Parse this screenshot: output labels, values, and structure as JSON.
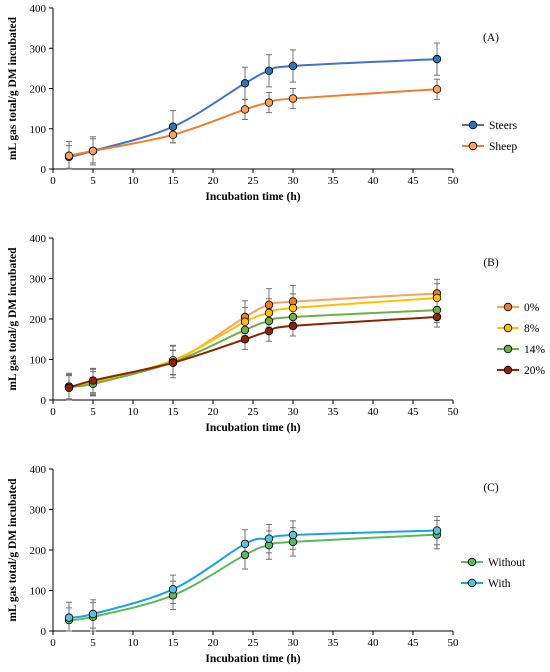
{
  "chart_data": [
    {
      "type": "line",
      "panel_label": "(A)",
      "xlabel": "Incubation time (h)",
      "ylabel": "mL gas total/g DM incubated",
      "xlim": [
        0,
        50
      ],
      "ylim": [
        0,
        400
      ],
      "xticks": [
        0,
        5,
        10,
        15,
        20,
        25,
        30,
        35,
        40,
        45,
        50
      ],
      "yticks": [
        0,
        100,
        200,
        300,
        400
      ],
      "grid": false,
      "legend_position": "right",
      "x": [
        2,
        5,
        15,
        24,
        27,
        30,
        48
      ],
      "series": [
        {
          "name": "Steers",
          "color": "#4472c4",
          "marker": "#2e75b6",
          "values": [
            30,
            45,
            105,
            213,
            244,
            256,
            273
          ],
          "err": [
            28,
            35,
            40,
            40,
            40,
            40,
            40
          ]
        },
        {
          "name": "Sheep",
          "color": "#ed7d31",
          "marker": "#f4a460",
          "values": [
            33,
            45,
            85,
            148,
            165,
            175,
            198
          ],
          "err": [
            35,
            30,
            20,
            25,
            25,
            25,
            25
          ]
        }
      ]
    },
    {
      "type": "line",
      "panel_label": "(B)",
      "xlabel": "Incubation time (h)",
      "ylabel": "mL gas total/g DM incubated",
      "xlim": [
        0,
        50
      ],
      "ylim": [
        0,
        400
      ],
      "xticks": [
        0,
        5,
        10,
        15,
        20,
        25,
        30,
        35,
        40,
        45,
        50
      ],
      "yticks": [
        0,
        100,
        200,
        300,
        400
      ],
      "grid": false,
      "legend_position": "right",
      "x": [
        2,
        5,
        15,
        24,
        27,
        30,
        48
      ],
      "series": [
        {
          "name": "0%",
          "color": "#f4a460",
          "marker": "#ed7d31",
          "values": [
            33,
            45,
            95,
            205,
            235,
            243,
            263
          ],
          "err": [
            33,
            33,
            40,
            40,
            40,
            40,
            35
          ]
        },
        {
          "name": "8%",
          "color": "#ffc000",
          "marker": "#ffc000",
          "values": [
            32,
            45,
            98,
            193,
            215,
            227,
            252
          ],
          "err": [
            30,
            30,
            35,
            35,
            35,
            35,
            35
          ]
        },
        {
          "name": "14%",
          "color": "#70ad47",
          "marker": "#70ad47",
          "values": [
            33,
            40,
            93,
            173,
            195,
            205,
            222
          ],
          "err": [
            30,
            30,
            30,
            30,
            30,
            30,
            30
          ]
        },
        {
          "name": "20%",
          "color": "#8b2500",
          "marker": "#8b2500",
          "values": [
            30,
            48,
            92,
            150,
            170,
            183,
            205
          ],
          "err": [
            30,
            30,
            30,
            25,
            25,
            25,
            25
          ]
        }
      ]
    },
    {
      "type": "line",
      "panel_label": "(C)",
      "xlabel": "Incubation time (h)",
      "ylabel": "mL gas total/g DM incubated",
      "xlim": [
        0,
        50
      ],
      "ylim": [
        0,
        400
      ],
      "xticks": [
        0,
        5,
        10,
        15,
        20,
        25,
        30,
        35,
        40,
        45,
        50
      ],
      "yticks": [
        0,
        100,
        200,
        300,
        400
      ],
      "grid": false,
      "legend_position": "right",
      "x": [
        2,
        5,
        15,
        24,
        27,
        30,
        48
      ],
      "series": [
        {
          "name": "Without",
          "color": "#5cb85c",
          "marker": "#5cb85c",
          "values": [
            27,
            35,
            88,
            188,
            212,
            220,
            238
          ],
          "err": [
            30,
            35,
            35,
            35,
            35,
            35,
            35
          ]
        },
        {
          "name": "With",
          "color": "#1fa2dc",
          "marker": "#5bc0de",
          "values": [
            33,
            42,
            103,
            215,
            228,
            237,
            248
          ],
          "err": [
            38,
            35,
            35,
            35,
            35,
            35,
            35
          ]
        }
      ]
    }
  ]
}
